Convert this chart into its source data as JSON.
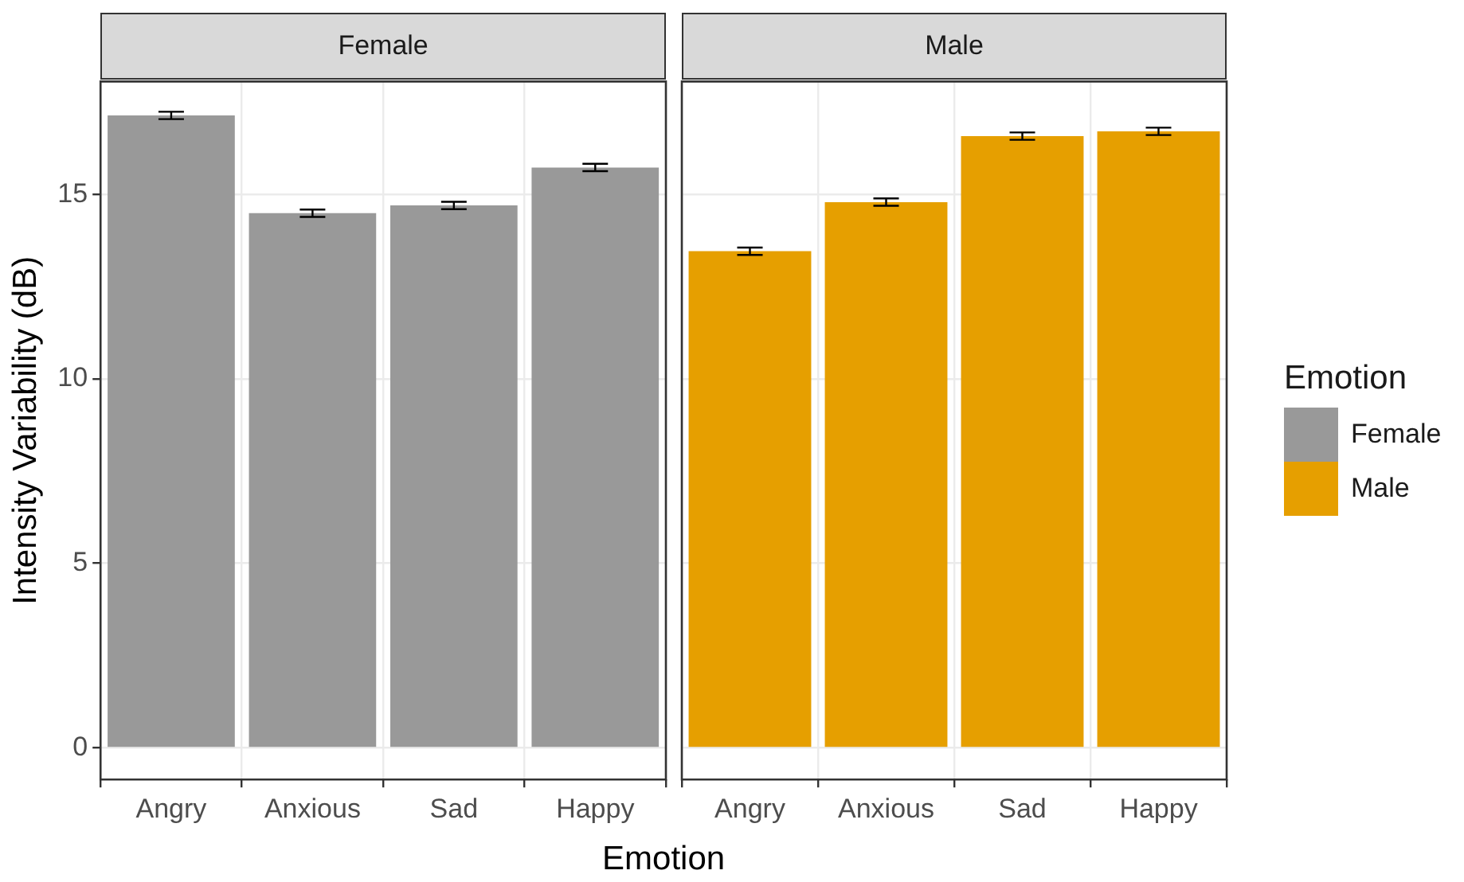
{
  "chart_data": [
    {
      "type": "bar",
      "title": "Female",
      "categories": [
        "Angry",
        "Anxious",
        "Sad",
        "Happy"
      ],
      "series": [
        {
          "name": "Female",
          "color": "#999999",
          "values": [
            17.14,
            14.49,
            14.7,
            15.73
          ],
          "errors": [
            0.1,
            0.1,
            0.1,
            0.1
          ]
        }
      ],
      "ylim": [
        -0.86,
        18.06
      ],
      "yticks": [
        0,
        5,
        10,
        15
      ],
      "ylabel": "Intensity Variability (dB)",
      "xlabel": "Emotion",
      "grid": true,
      "legend": "right"
    },
    {
      "type": "bar",
      "title": "Male",
      "categories": [
        "Angry",
        "Anxious",
        "Sad",
        "Happy"
      ],
      "series": [
        {
          "name": "Male",
          "color": "#e69f00",
          "values": [
            13.46,
            14.79,
            16.58,
            16.71
          ],
          "errors": [
            0.1,
            0.1,
            0.1,
            0.1
          ]
        }
      ],
      "ylim": [
        -0.86,
        18.06
      ],
      "yticks": [
        0,
        5,
        10,
        15
      ],
      "grid": true,
      "legend": "right",
      "legend_title": "Emotion",
      "tick_labels": "x"
    }
  ]
}
